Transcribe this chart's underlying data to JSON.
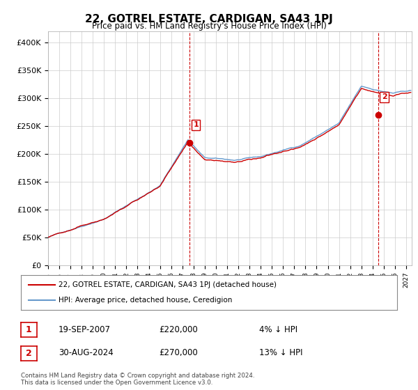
{
  "title": "22, GOTREL ESTATE, CARDIGAN, SA43 1PJ",
  "subtitle": "Price paid vs. HM Land Registry's House Price Index (HPI)",
  "xlabel": "",
  "ylabel": "",
  "ylim": [
    0,
    420000
  ],
  "yticks": [
    0,
    50000,
    100000,
    150000,
    200000,
    250000,
    300000,
    350000,
    400000
  ],
  "ytick_labels": [
    "£0",
    "£50K",
    "£100K",
    "£150K",
    "£200K",
    "£250K",
    "£300K",
    "£350K",
    "£400K"
  ],
  "hpi_color": "#6699cc",
  "price_color": "#cc0000",
  "marker1_date_idx": 152,
  "marker1_price": 220000,
  "marker1_label": "19-SEP-2007",
  "marker1_note": "4% ↓ HPI",
  "marker2_date_idx": 354,
  "marker2_price": 270000,
  "marker2_label": "30-AUG-2024",
  "marker2_note": "13% ↓ HPI",
  "legend_line1": "22, GOTREL ESTATE, CARDIGAN, SA43 1PJ (detached house)",
  "legend_line2": "HPI: Average price, detached house, Ceredigion",
  "footer": "Contains HM Land Registry data © Crown copyright and database right 2024.\nThis data is licensed under the Open Government Licence v3.0.",
  "start_year": 1995,
  "start_month": 1,
  "n_months": 390,
  "background_color": "#ffffff",
  "grid_color": "#cccccc"
}
